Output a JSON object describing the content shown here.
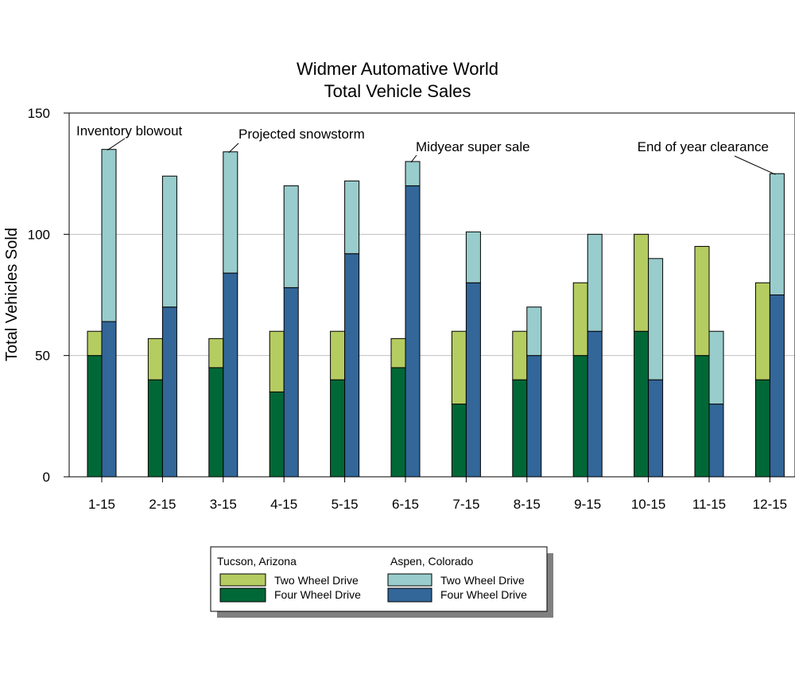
{
  "chart_data": {
    "type": "bar",
    "title": [
      "Widmer Automative World",
      "Total Vehicle Sales"
    ],
    "xlabel": "",
    "ylabel": "Total Vehicles Sold",
    "ylim": [
      0,
      150
    ],
    "yticks": [
      0,
      50,
      100,
      150
    ],
    "grid": true,
    "categories": [
      "1-15",
      "2-15",
      "3-15",
      "4-15",
      "5-15",
      "6-15",
      "7-15",
      "8-15",
      "9-15",
      "10-15",
      "11-15",
      "12-15"
    ],
    "groups": [
      {
        "name": "Tucson, Arizona",
        "series": [
          {
            "name": "Four Wheel Drive",
            "color": "#006837",
            "values": [
              50,
              40,
              45,
              35,
              40,
              45,
              30,
              40,
              50,
              60,
              50,
              40
            ]
          },
          {
            "name": "Two Wheel Drive",
            "color": "#b5cc61",
            "values": [
              10,
              17,
              12,
              25,
              20,
              12,
              30,
              20,
              30,
              40,
              45,
              40
            ]
          }
        ]
      },
      {
        "name": "Aspen, Colorado",
        "series": [
          {
            "name": "Four Wheel Drive",
            "color": "#336699",
            "values": [
              64,
              70,
              84,
              78,
              92,
              120,
              80,
              50,
              60,
              40,
              30,
              75
            ]
          },
          {
            "name": "Two Wheel Drive",
            "color": "#99cccc",
            "values": [
              71,
              54,
              50,
              42,
              30,
              10,
              21,
              20,
              40,
              50,
              30,
              50
            ]
          }
        ]
      }
    ],
    "annotations": [
      {
        "text": "Inventory blowout",
        "category": "1-15",
        "value": 135
      },
      {
        "text": "Projected snowstorm",
        "category": "3-15",
        "value": 134
      },
      {
        "text": "Midyear super sale",
        "category": "6-15",
        "value": 130
      },
      {
        "text": "End of year clearance",
        "category": "12-15",
        "value": 125
      }
    ],
    "legend": {
      "placement": "bottom",
      "columns": [
        {
          "title": "Tucson, Arizona",
          "items": [
            {
              "label": "Two Wheel Drive",
              "color": "#b5cc61"
            },
            {
              "label": "Four Wheel Drive",
              "color": "#006837"
            }
          ]
        },
        {
          "title": "Aspen, Colorado",
          "items": [
            {
              "label": "Two Wheel Drive",
              "color": "#99cccc"
            },
            {
              "label": "Four Wheel Drive",
              "color": "#336699"
            }
          ]
        }
      ]
    }
  }
}
